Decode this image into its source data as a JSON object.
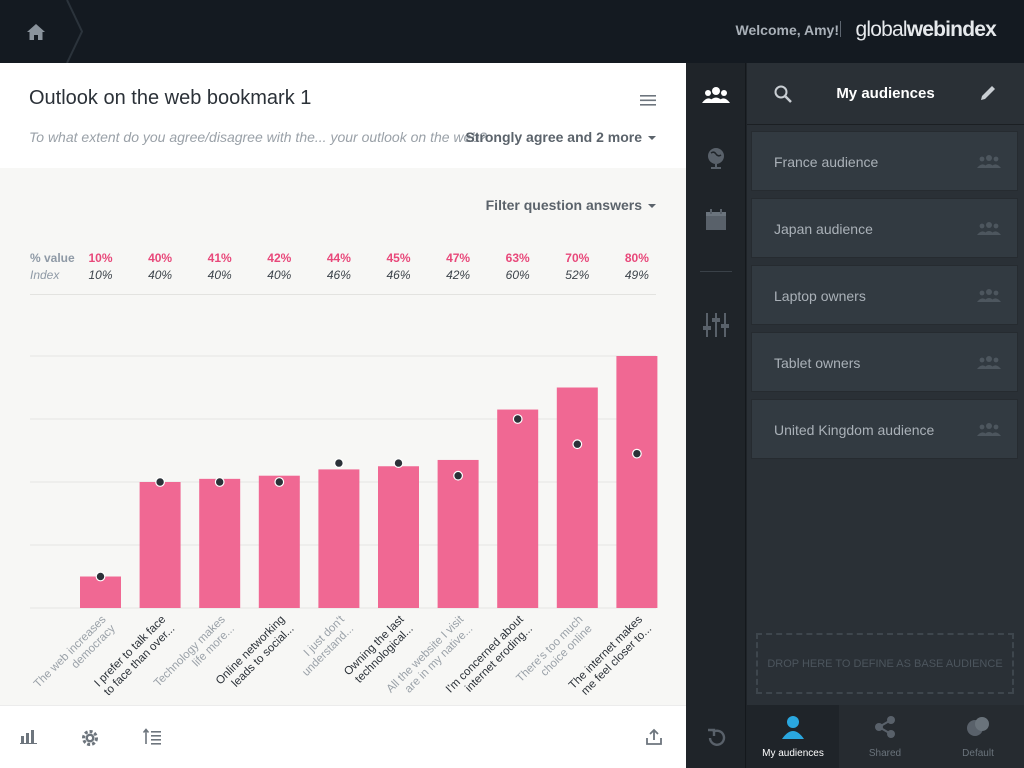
{
  "header": {
    "welcome": "Welcome, Amy!",
    "separator": "|",
    "logo_light": "global",
    "logo_bold": "webindex"
  },
  "main": {
    "title": "Outlook on the web bookmark 1",
    "question": "To what extent do you agree/disagree with the... your outlook on the web?",
    "answers_filter": "Strongly agree and 2 more",
    "filter_label": "Filter question answers",
    "row_value_label": "% value",
    "row_index_label": "Index"
  },
  "chart_data": {
    "type": "bar",
    "categories": [
      [
        "The web increases",
        "democracy"
      ],
      [
        "I prefer to talk face",
        "to face than over..."
      ],
      [
        "Technology makes",
        "life more..."
      ],
      [
        "Online networking",
        "leads to social..."
      ],
      [
        "I just don't",
        "understand..."
      ],
      [
        "Owning the last",
        "technological..."
      ],
      [
        "All the website I visit",
        "are in my native..."
      ],
      [
        "I'm concerned about",
        "internet eroding..."
      ],
      [
        "There's too much",
        "choice online"
      ],
      [
        "The internet makes",
        "me feel closer to..."
      ]
    ],
    "label_tone": [
      "light",
      "dark",
      "light",
      "dark",
      "light",
      "dark",
      "light",
      "dark",
      "light",
      "dark"
    ],
    "values": [
      10,
      40,
      41,
      42,
      44,
      45,
      47,
      63,
      70,
      80
    ],
    "value_labels": [
      "10%",
      "40%",
      "41%",
      "42%",
      "44%",
      "45%",
      "47%",
      "63%",
      "70%",
      "80%"
    ],
    "index": [
      10,
      40,
      40,
      40,
      46,
      46,
      42,
      60,
      52,
      49
    ],
    "index_labels": [
      "10%",
      "40%",
      "40%",
      "40%",
      "46%",
      "46%",
      "42%",
      "60%",
      "52%",
      "49%"
    ],
    "ylim": [
      0,
      80
    ],
    "grid": true,
    "bar_color": "#f06893",
    "dot_color": "#2b3138"
  },
  "nav": {
    "items": [
      "audiences-icon",
      "globe-icon",
      "calendar-icon",
      "sliders-icon",
      "undo-icon"
    ],
    "active_color": "#ffffff",
    "idle_color": "#59616a"
  },
  "audiences": {
    "title": "My audiences",
    "items": [
      {
        "label": "France audience"
      },
      {
        "label": "Japan audience"
      },
      {
        "label": "Laptop owners"
      },
      {
        "label": "Tablet owners"
      },
      {
        "label": "United Kingdom audience"
      }
    ],
    "dropzone": "DROP HERE TO DEFINE AS BASE AUDIENCE",
    "tabs": [
      {
        "label": "My audiences",
        "active": true
      },
      {
        "label": "Shared",
        "active": false
      },
      {
        "label": "Default",
        "active": false
      }
    ],
    "accent": "#2aa7df"
  }
}
